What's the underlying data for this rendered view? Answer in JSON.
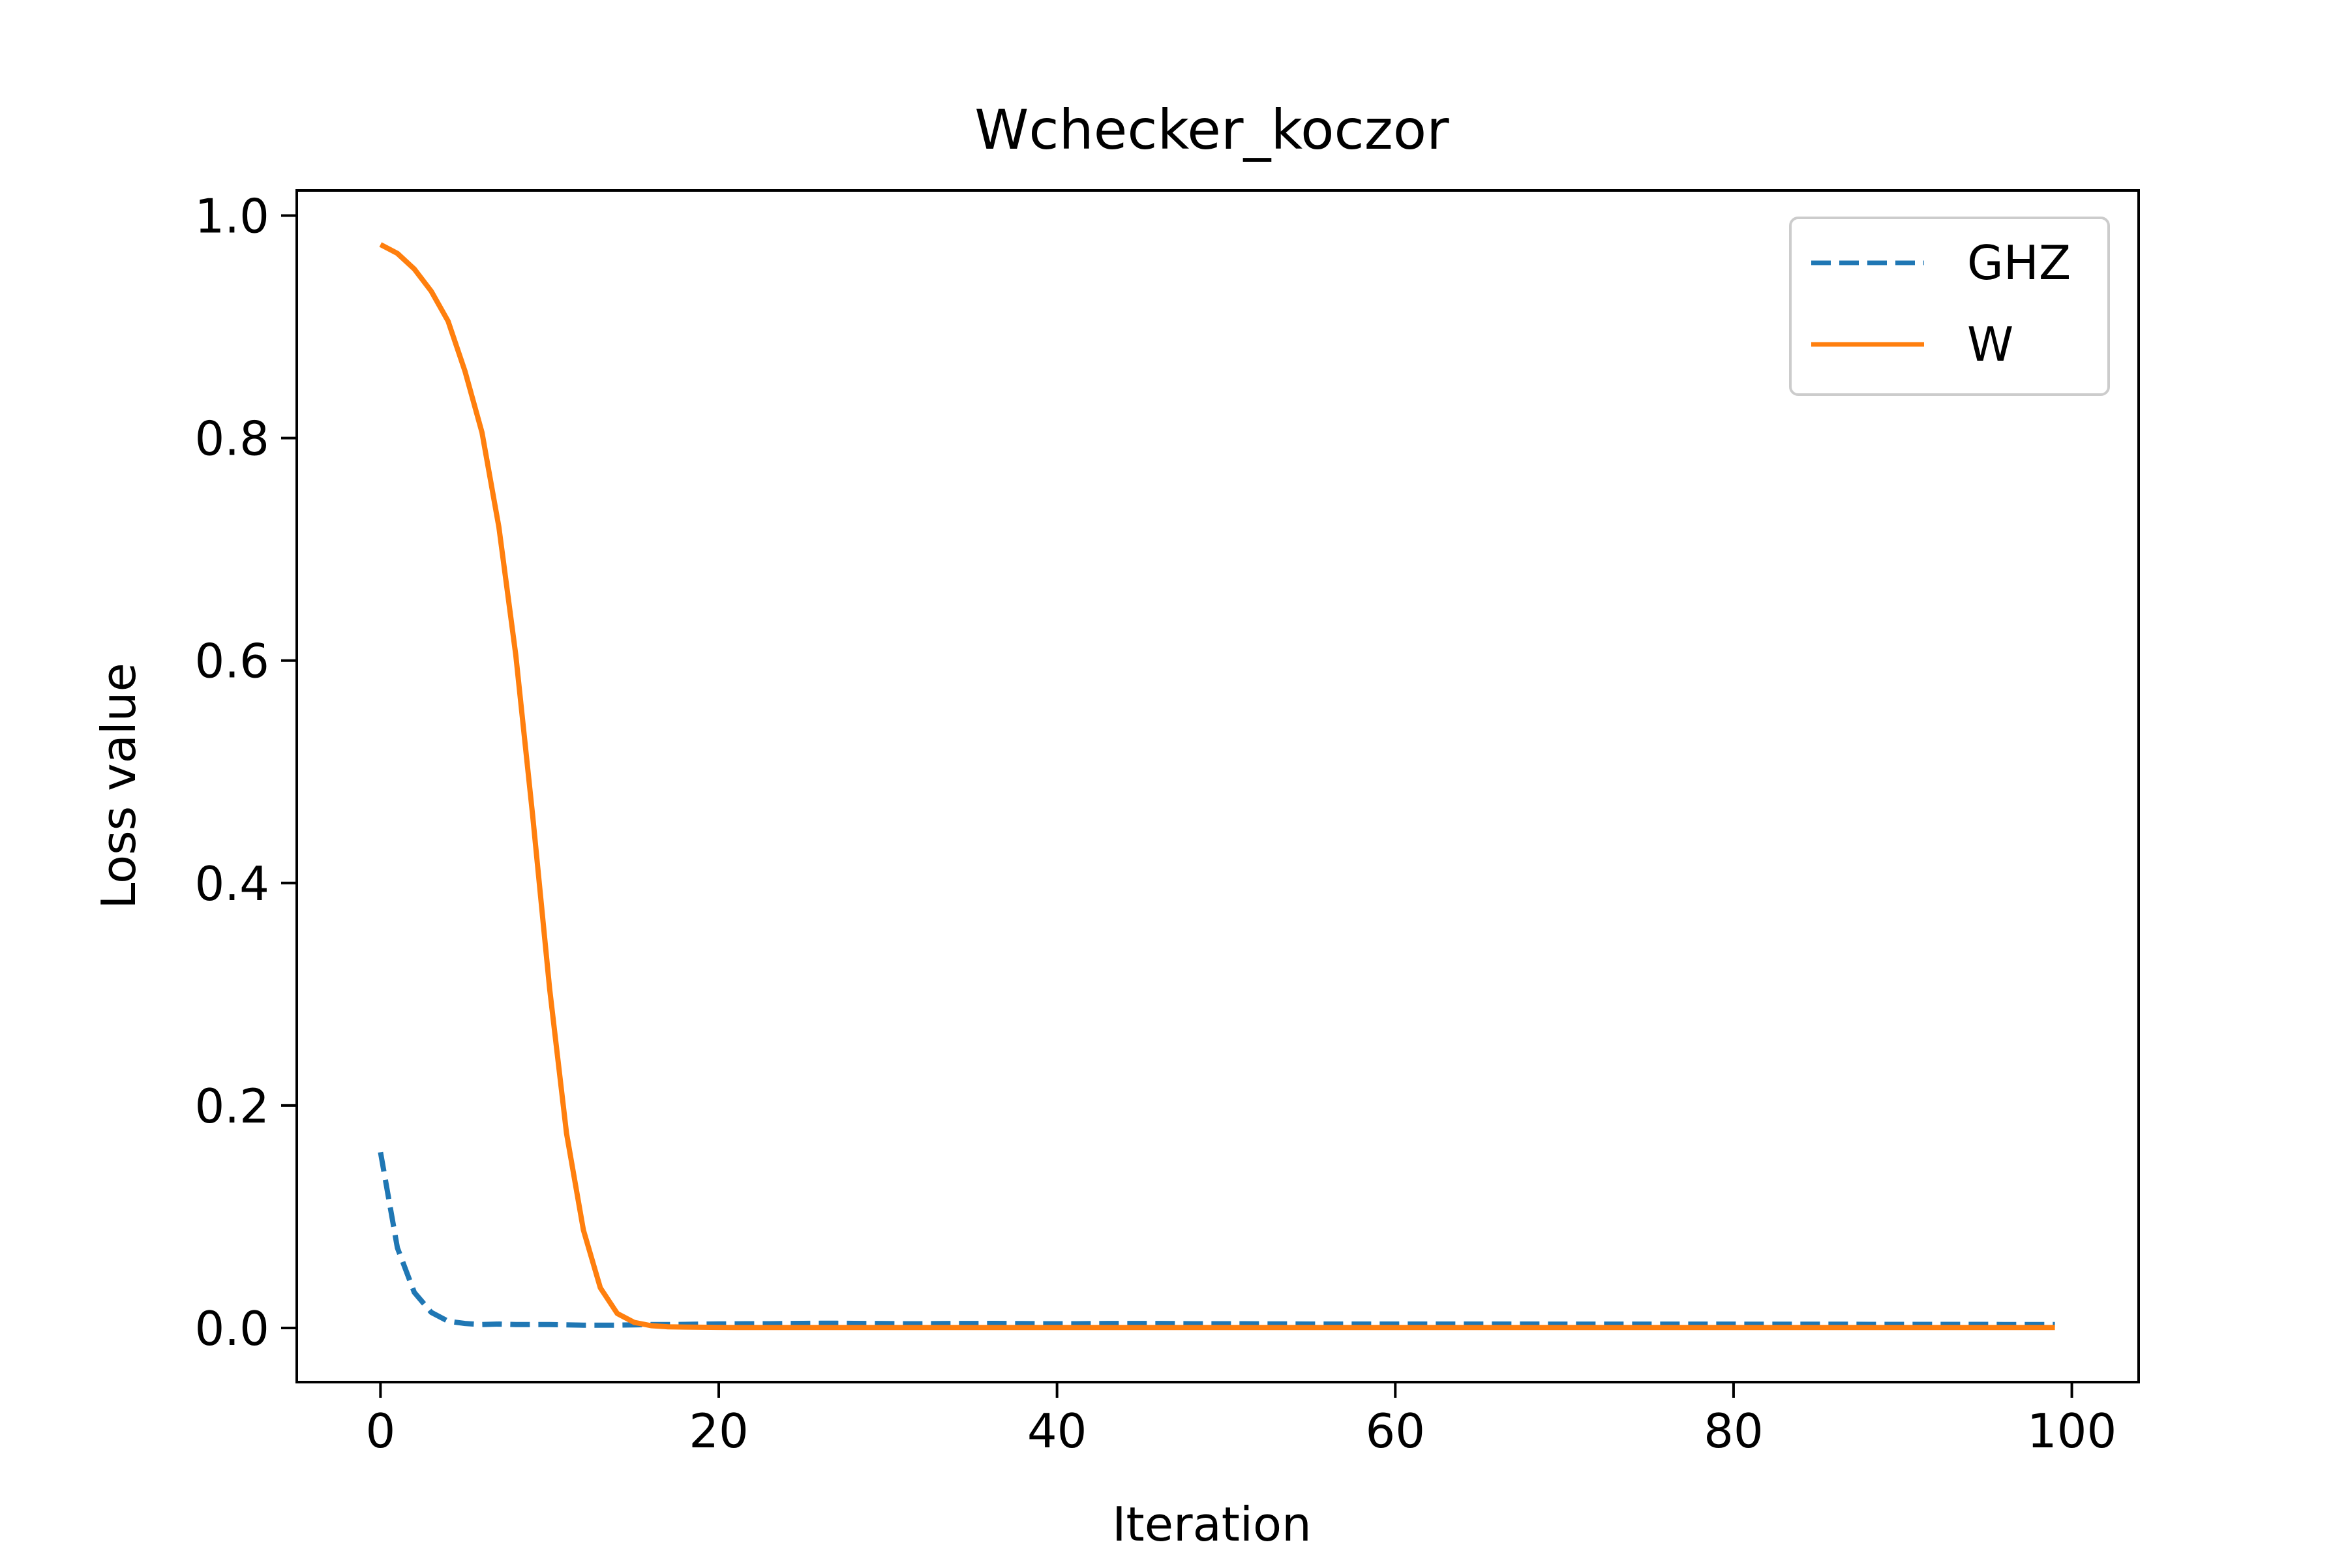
{
  "chart_data": {
    "type": "line",
    "title": "Wchecker_koczor",
    "xlabel": "Iteration",
    "ylabel": "Loss value",
    "xlim": [
      -4.95,
      103.95
    ],
    "ylim": [
      -0.0487,
      1.0226
    ],
    "xticks": [
      0,
      20,
      40,
      60,
      80,
      100
    ],
    "xtick_labels": [
      "0",
      "20",
      "40",
      "60",
      "80",
      "100"
    ],
    "yticks": [
      0.0,
      0.2,
      0.4,
      0.6,
      0.8,
      1.0
    ],
    "ytick_labels": [
      "0.0",
      "0.2",
      "0.4",
      "0.6",
      "0.8",
      "1.0"
    ],
    "grid": false,
    "legend_position": "upper-right",
    "series": [
      {
        "name": "GHZ",
        "style": "dashed",
        "color": "#1f77b4",
        "x": [
          0,
          1,
          2,
          3,
          4,
          5,
          6,
          7,
          8,
          9,
          10,
          11,
          12,
          13,
          14,
          15,
          16,
          17,
          18,
          19,
          20,
          21,
          22,
          23,
          24,
          25,
          26,
          27,
          28,
          29,
          30,
          31,
          32,
          33,
          34,
          35,
          36,
          37,
          38,
          39,
          40,
          41,
          42,
          43,
          44,
          45,
          46,
          47,
          48,
          49,
          50,
          51,
          52,
          53,
          54,
          55,
          56,
          57,
          58,
          59,
          60,
          61,
          62,
          63,
          64,
          65,
          66,
          67,
          68,
          69,
          70,
          71,
          72,
          73,
          74,
          75,
          76,
          77,
          78,
          79,
          80,
          81,
          82,
          83,
          84,
          85,
          86,
          87,
          88,
          89,
          90,
          91,
          92,
          93,
          94,
          95,
          96,
          97,
          98,
          99
        ],
        "values": [
          0.158,
          0.072,
          0.032,
          0.014,
          0.006,
          0.004,
          0.003,
          0.0035,
          0.003,
          0.003,
          0.003,
          0.0028,
          0.0025,
          0.0025,
          0.0025,
          0.0028,
          0.003,
          0.003,
          0.0032,
          0.0035,
          0.0036,
          0.0037,
          0.0038,
          0.0038,
          0.004,
          0.0041,
          0.0042,
          0.0042,
          0.0041,
          0.004,
          0.0039,
          0.0038,
          0.0038,
          0.0039,
          0.004,
          0.004,
          0.0041,
          0.004,
          0.0039,
          0.0038,
          0.0038,
          0.0038,
          0.0039,
          0.004,
          0.004,
          0.004,
          0.004,
          0.0039,
          0.0038,
          0.0038,
          0.0038,
          0.0038,
          0.0037,
          0.0036,
          0.0036,
          0.0035,
          0.0035,
          0.0035,
          0.0035,
          0.0035,
          0.0035,
          0.0035,
          0.0035,
          0.0035,
          0.0035,
          0.0035,
          0.0035,
          0.0035,
          0.0035,
          0.0034,
          0.0034,
          0.0034,
          0.0034,
          0.0034,
          0.0034,
          0.0034,
          0.0034,
          0.0034,
          0.0034,
          0.0034,
          0.0034,
          0.0033,
          0.0033,
          0.0033,
          0.0033,
          0.0033,
          0.0033,
          0.0033,
          0.0032,
          0.0032,
          0.0032,
          0.0032,
          0.0032,
          0.0032,
          0.0032,
          0.0032,
          0.0031,
          0.0031,
          0.0031,
          0.0031
        ]
      },
      {
        "name": "W",
        "style": "solid",
        "color": "#ff7f0e",
        "x": [
          0,
          1,
          2,
          3,
          4,
          5,
          6,
          7,
          8,
          9,
          10,
          11,
          12,
          13,
          14,
          15,
          16,
          17,
          18,
          19,
          20,
          21,
          22,
          23,
          24,
          25,
          26,
          27,
          28,
          29,
          30,
          31,
          32,
          33,
          34,
          35,
          36,
          37,
          38,
          39,
          40,
          41,
          42,
          43,
          44,
          45,
          46,
          47,
          48,
          49,
          50,
          51,
          52,
          53,
          54,
          55,
          56,
          57,
          58,
          59,
          60,
          61,
          62,
          63,
          64,
          65,
          66,
          67,
          68,
          69,
          70,
          71,
          72,
          73,
          74,
          75,
          76,
          77,
          78,
          79,
          80,
          81,
          82,
          83,
          84,
          85,
          86,
          87,
          88,
          89,
          90,
          91,
          92,
          93,
          94,
          95,
          96,
          97,
          98,
          99
        ],
        "values": [
          0.974,
          0.966,
          0.952,
          0.932,
          0.905,
          0.86,
          0.805,
          0.72,
          0.605,
          0.46,
          0.305,
          0.175,
          0.088,
          0.036,
          0.013,
          0.005,
          0.002,
          0.001,
          0.0008,
          0.0006,
          0.0005,
          0.0004,
          0.0004,
          0.0004,
          0.0004,
          0.0004,
          0.0004,
          0.0004,
          0.0004,
          0.0004,
          0.0004,
          0.0004,
          0.0004,
          0.0004,
          0.0004,
          0.0004,
          0.0004,
          0.0004,
          0.0004,
          0.0004,
          0.0004,
          0.0004,
          0.0004,
          0.0004,
          0.0004,
          0.0004,
          0.0004,
          0.0004,
          0.0004,
          0.0004,
          0.0004,
          0.0004,
          0.0004,
          0.0004,
          0.0004,
          0.0004,
          0.0004,
          0.0004,
          0.0004,
          0.0004,
          0.0004,
          0.0004,
          0.0004,
          0.0004,
          0.0004,
          0.0004,
          0.0004,
          0.0004,
          0.0004,
          0.0004,
          0.0004,
          0.0004,
          0.0004,
          0.0004,
          0.0004,
          0.0004,
          0.0004,
          0.0004,
          0.0004,
          0.0004,
          0.0004,
          0.0004,
          0.0004,
          0.0004,
          0.0004,
          0.0004,
          0.0004,
          0.0004,
          0.0004,
          0.0004,
          0.0004,
          0.0004,
          0.0004,
          0.0004,
          0.0004,
          0.0004,
          0.0004,
          0.0004,
          0.0004,
          0.0004
        ]
      }
    ]
  }
}
